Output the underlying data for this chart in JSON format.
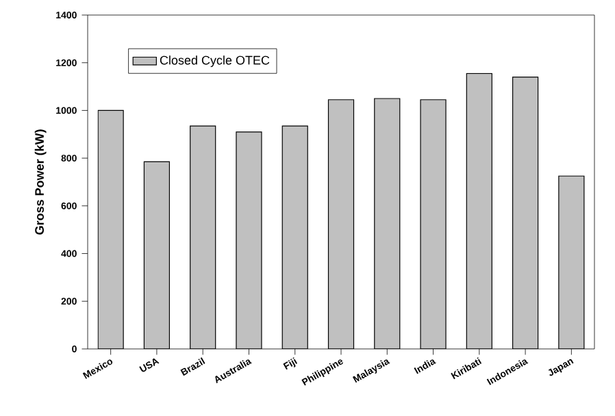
{
  "chart_data": {
    "type": "bar",
    "ylabel": "Gross Power (kW)",
    "categories": [
      "Mexico",
      "USA",
      "Brazil",
      "Australia",
      "Fiji",
      "Philippine",
      "Malaysia",
      "India",
      "Kiribati",
      "Indonesia",
      "Japan"
    ],
    "series": [
      {
        "name": "Closed Cycle OTEC",
        "color": "#c0c0c0",
        "values": [
          1000,
          785,
          935,
          910,
          935,
          1045,
          1050,
          1045,
          1155,
          1140,
          725
        ]
      }
    ],
    "ylim": [
      0,
      1400
    ],
    "yticks": [
      0,
      200,
      400,
      600,
      800,
      1000,
      1200,
      1400
    ],
    "legend": "top left",
    "grid": false
  }
}
